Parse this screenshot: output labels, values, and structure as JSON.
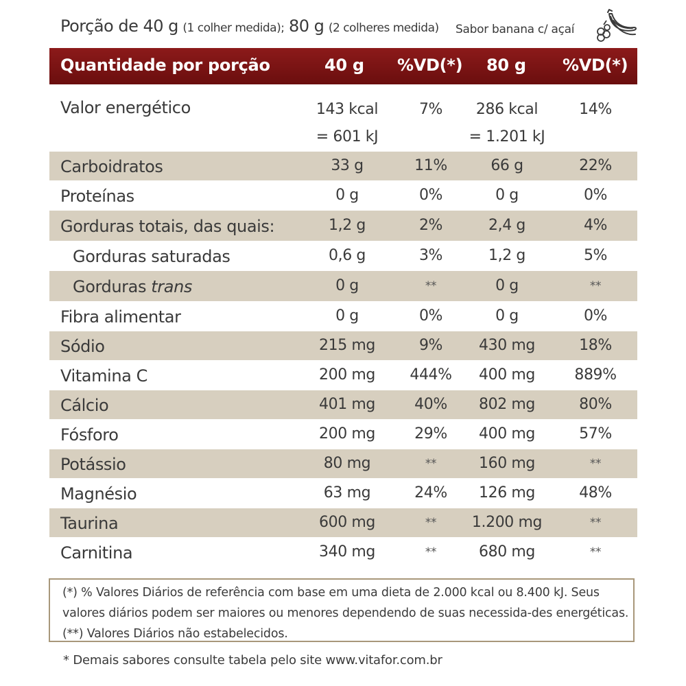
{
  "serving": {
    "portion_40": "Porção de 40 g",
    "portion_40_note": "(1 colher medida);",
    "portion_80": "80 g",
    "portion_80_note": "(2 colheres medida)",
    "flavor": "Sabor banana c/ açaí",
    "flavor_icon": "banana-acai-icon"
  },
  "table": {
    "header": {
      "label": "Quantidade por porção",
      "col1": "40 g",
      "col2": "%VD(*)",
      "col3": "80 g",
      "col4": "%VD(*)"
    },
    "energy": {
      "name": "Valor energético",
      "v40": "143 kcal",
      "v40_kj": "= 601 kJ",
      "vd40": "7%",
      "v80": "286 kcal",
      "v80_kj": "= 1.201 kJ",
      "vd80": "14%"
    },
    "rows": [
      {
        "name": "Carboidratos",
        "v40": "33 g",
        "vd40": "11%",
        "v80": "66 g",
        "vd80": "22%"
      },
      {
        "name": "Proteínas",
        "v40": "0 g",
        "vd40": "0%",
        "v80": "0 g",
        "vd80": "0%"
      },
      {
        "name": "Gorduras totais, das quais:",
        "v40": "1,2 g",
        "vd40": "2%",
        "v80": "2,4 g",
        "vd80": "4%"
      },
      {
        "name": "Gorduras saturadas",
        "v40": "0,6 g",
        "vd40": "3%",
        "v80": "1,2 g",
        "vd80": "5%"
      },
      {
        "name": "Gorduras",
        "name_italic": "trans",
        "v40": "0 g",
        "vd40": "**",
        "v80": "0 g",
        "vd80": "**"
      },
      {
        "name": "Fibra alimentar",
        "v40": "0 g",
        "vd40": "0%",
        "v80": "0 g",
        "vd80": "0%"
      },
      {
        "name": "Sódio",
        "v40": "215 mg",
        "vd40": "9%",
        "v80": "430 mg",
        "vd80": "18%"
      },
      {
        "name": "Vitamina C",
        "v40": "200 mg",
        "vd40": "444%",
        "v80": "400 mg",
        "vd80": "889%"
      },
      {
        "name": "Cálcio",
        "v40": "401 mg",
        "vd40": "40%",
        "v80": "802 mg",
        "vd80": "80%"
      },
      {
        "name": "Fósforo",
        "v40": "200 mg",
        "vd40": "29%",
        "v80": "400 mg",
        "vd80": "57%"
      },
      {
        "name": "Potássio",
        "v40": "80 mg",
        "vd40": "**",
        "v80": "160 mg",
        "vd80": "**"
      },
      {
        "name": "Magnésio",
        "v40": "63 mg",
        "vd40": "24%",
        "v80": "126 mg",
        "vd80": "48%"
      },
      {
        "name": "Taurina",
        "v40": "600 mg",
        "vd40": "**",
        "v80": "1.200 mg",
        "vd80": "**"
      },
      {
        "name": "Carnitina",
        "v40": "340 mg",
        "vd40": "**",
        "v80": "680 mg",
        "vd80": "**"
      }
    ]
  },
  "note": "(*) % Valores Diários de referência com base em uma dieta de 2.000 kcal ou 8.400 kJ. Seus valores diários podem ser maiores ou menores dependendo de suas necessida-des energéticas.  (**) Valores Diários não estabelecidos.",
  "footer": "* Demais sabores consulte tabela pelo site www.vitafor.com.br",
  "colors": {
    "header_bg": "#7a1414",
    "shade": "#d7cfbf",
    "text": "#3a3a3a",
    "border": "#a8977a"
  }
}
